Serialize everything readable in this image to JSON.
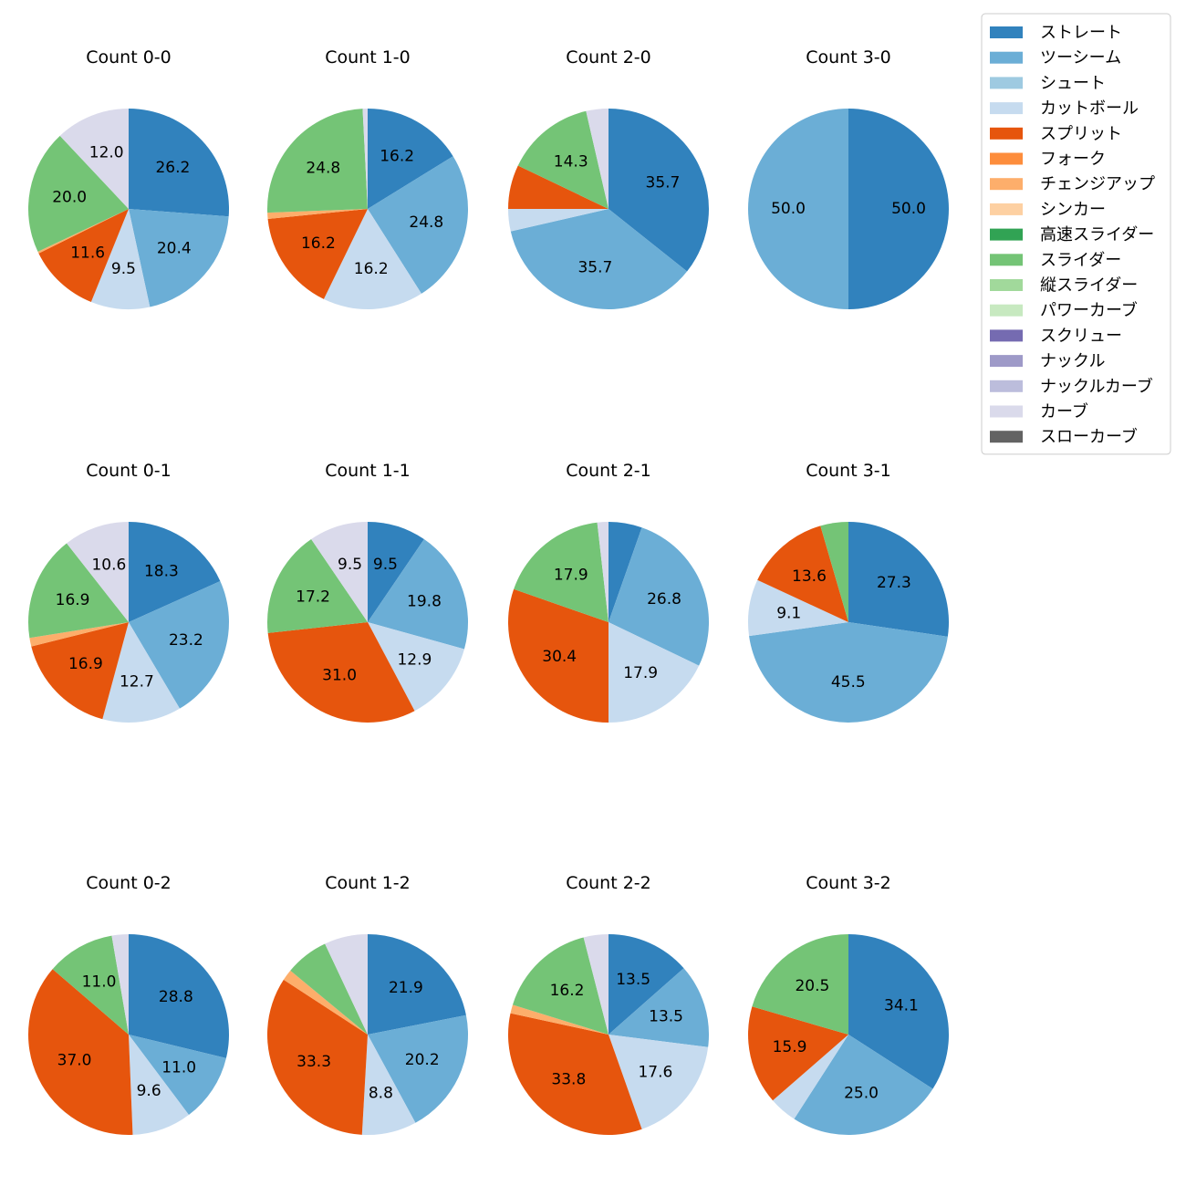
{
  "chart_data": {
    "type": "pie",
    "legend_position": "top-right",
    "legend": [
      {
        "name": "ストレート",
        "color": "#3182bd"
      },
      {
        "name": "ツーシーム",
        "color": "#6baed6"
      },
      {
        "name": "シュート",
        "color": "#9ecae1"
      },
      {
        "name": "カットボール",
        "color": "#c6dbef"
      },
      {
        "name": "スプリット",
        "color": "#e6550d"
      },
      {
        "name": "フォーク",
        "color": "#fd8d3c"
      },
      {
        "name": "チェンジアップ",
        "color": "#fdae6b"
      },
      {
        "name": "シンカー",
        "color": "#fdd0a2"
      },
      {
        "name": "高速スライダー",
        "color": "#31a354"
      },
      {
        "name": "スライダー",
        "color": "#74c476"
      },
      {
        "name": "縦スライダー",
        "color": "#a1d99b"
      },
      {
        "name": "パワーカーブ",
        "color": "#c7e9c0"
      },
      {
        "name": "スクリュー",
        "color": "#756bb1"
      },
      {
        "name": "ナックル",
        "color": "#9e9ac8"
      },
      {
        "name": "ナックルカーブ",
        "color": "#bcbddc"
      },
      {
        "name": "カーブ",
        "color": "#dadaeb"
      },
      {
        "name": "スローカーブ",
        "color": "#636363"
      }
    ],
    "pies": [
      {
        "title": "Count 0-0",
        "slices": [
          {
            "pitch": "ストレート",
            "value": 26.2,
            "label": "26.2"
          },
          {
            "pitch": "ツーシーム",
            "value": 20.4,
            "label": "20.4"
          },
          {
            "pitch": "カットボール",
            "value": 9.5,
            "label": "9.5"
          },
          {
            "pitch": "スプリット",
            "value": 11.6,
            "label": "11.6"
          },
          {
            "pitch": "チェンジアップ",
            "value": 0.3,
            "label": ""
          },
          {
            "pitch": "スライダー",
            "value": 20.0,
            "label": "20.0"
          },
          {
            "pitch": "カーブ",
            "value": 12.0,
            "label": "12.0"
          }
        ]
      },
      {
        "title": "Count 1-0",
        "slices": [
          {
            "pitch": "ストレート",
            "value": 16.2,
            "label": "16.2"
          },
          {
            "pitch": "ツーシーム",
            "value": 24.8,
            "label": "24.8"
          },
          {
            "pitch": "カットボール",
            "value": 16.2,
            "label": "16.2"
          },
          {
            "pitch": "スプリット",
            "value": 16.2,
            "label": "16.2"
          },
          {
            "pitch": "チェンジアップ",
            "value": 1.0,
            "label": ""
          },
          {
            "pitch": "スライダー",
            "value": 24.8,
            "label": "24.8"
          },
          {
            "pitch": "カーブ",
            "value": 0.8,
            "label": ""
          }
        ]
      },
      {
        "title": "Count 2-0",
        "slices": [
          {
            "pitch": "ストレート",
            "value": 35.7,
            "label": "35.7"
          },
          {
            "pitch": "ツーシーム",
            "value": 35.7,
            "label": "35.7"
          },
          {
            "pitch": "カットボール",
            "value": 3.6,
            "label": ""
          },
          {
            "pitch": "スプリット",
            "value": 7.1,
            "label": ""
          },
          {
            "pitch": "スライダー",
            "value": 14.3,
            "label": "14.3"
          },
          {
            "pitch": "カーブ",
            "value": 3.6,
            "label": ""
          }
        ]
      },
      {
        "title": "Count 3-0",
        "slices": [
          {
            "pitch": "ストレート",
            "value": 50.0,
            "label": "50.0"
          },
          {
            "pitch": "ツーシーム",
            "value": 50.0,
            "label": "50.0"
          }
        ]
      },
      {
        "title": "Count 0-1",
        "slices": [
          {
            "pitch": "ストレート",
            "value": 18.3,
            "label": "18.3"
          },
          {
            "pitch": "ツーシーム",
            "value": 23.2,
            "label": "23.2"
          },
          {
            "pitch": "カットボール",
            "value": 12.7,
            "label": "12.7"
          },
          {
            "pitch": "スプリット",
            "value": 16.9,
            "label": "16.9"
          },
          {
            "pitch": "チェンジアップ",
            "value": 1.4,
            "label": ""
          },
          {
            "pitch": "スライダー",
            "value": 16.9,
            "label": "16.9"
          },
          {
            "pitch": "カーブ",
            "value": 10.6,
            "label": "10.6"
          }
        ]
      },
      {
        "title": "Count 1-1",
        "slices": [
          {
            "pitch": "ストレート",
            "value": 9.5,
            "label": "9.5"
          },
          {
            "pitch": "ツーシーム",
            "value": 19.8,
            "label": "19.8"
          },
          {
            "pitch": "カットボール",
            "value": 12.9,
            "label": "12.9"
          },
          {
            "pitch": "スプリット",
            "value": 31.0,
            "label": "31.0"
          },
          {
            "pitch": "スライダー",
            "value": 17.2,
            "label": "17.2"
          },
          {
            "pitch": "カーブ",
            "value": 9.5,
            "label": "9.5"
          }
        ]
      },
      {
        "title": "Count 2-1",
        "slices": [
          {
            "pitch": "ストレート",
            "value": 5.4,
            "label": ""
          },
          {
            "pitch": "ツーシーム",
            "value": 26.8,
            "label": "26.8"
          },
          {
            "pitch": "カットボール",
            "value": 17.9,
            "label": "17.9"
          },
          {
            "pitch": "スプリット",
            "value": 30.4,
            "label": "30.4"
          },
          {
            "pitch": "スライダー",
            "value": 17.9,
            "label": "17.9"
          },
          {
            "pitch": "カーブ",
            "value": 1.8,
            "label": ""
          }
        ]
      },
      {
        "title": "Count 3-1",
        "slices": [
          {
            "pitch": "ストレート",
            "value": 27.3,
            "label": "27.3"
          },
          {
            "pitch": "ツーシーム",
            "value": 45.5,
            "label": "45.5"
          },
          {
            "pitch": "カットボール",
            "value": 9.1,
            "label": "9.1"
          },
          {
            "pitch": "スプリット",
            "value": 13.6,
            "label": "13.6"
          },
          {
            "pitch": "スライダー",
            "value": 4.5,
            "label": ""
          }
        ]
      },
      {
        "title": "Count 0-2",
        "slices": [
          {
            "pitch": "ストレート",
            "value": 28.8,
            "label": "28.8"
          },
          {
            "pitch": "ツーシーム",
            "value": 11.0,
            "label": "11.0"
          },
          {
            "pitch": "カットボール",
            "value": 9.6,
            "label": "9.6"
          },
          {
            "pitch": "スプリット",
            "value": 37.0,
            "label": "37.0"
          },
          {
            "pitch": "スライダー",
            "value": 11.0,
            "label": "11.0"
          },
          {
            "pitch": "カーブ",
            "value": 2.7,
            "label": ""
          }
        ]
      },
      {
        "title": "Count 1-2",
        "slices": [
          {
            "pitch": "ストレート",
            "value": 21.9,
            "label": "21.9"
          },
          {
            "pitch": "ツーシーム",
            "value": 20.2,
            "label": "20.2"
          },
          {
            "pitch": "カットボール",
            "value": 8.8,
            "label": "8.8"
          },
          {
            "pitch": "スプリット",
            "value": 33.3,
            "label": "33.3"
          },
          {
            "pitch": "チェンジアップ",
            "value": 1.8,
            "label": ""
          },
          {
            "pitch": "スライダー",
            "value": 7.0,
            "label": ""
          },
          {
            "pitch": "カーブ",
            "value": 7.0,
            "label": ""
          }
        ]
      },
      {
        "title": "Count 2-2",
        "slices": [
          {
            "pitch": "ストレート",
            "value": 13.5,
            "label": "13.5"
          },
          {
            "pitch": "ツーシーム",
            "value": 13.5,
            "label": "13.5"
          },
          {
            "pitch": "カットボール",
            "value": 17.6,
            "label": "17.6"
          },
          {
            "pitch": "スプリット",
            "value": 33.8,
            "label": "33.8"
          },
          {
            "pitch": "チェンジアップ",
            "value": 1.4,
            "label": ""
          },
          {
            "pitch": "スライダー",
            "value": 16.2,
            "label": "16.2"
          },
          {
            "pitch": "カーブ",
            "value": 4.0,
            "label": ""
          }
        ]
      },
      {
        "title": "Count 3-2",
        "slices": [
          {
            "pitch": "ストレート",
            "value": 34.1,
            "label": "34.1"
          },
          {
            "pitch": "ツーシーム",
            "value": 25.0,
            "label": "25.0"
          },
          {
            "pitch": "カットボール",
            "value": 4.5,
            "label": ""
          },
          {
            "pitch": "スプリット",
            "value": 15.9,
            "label": "15.9"
          },
          {
            "pitch": "スライダー",
            "value": 20.5,
            "label": "20.5"
          }
        ]
      }
    ]
  }
}
